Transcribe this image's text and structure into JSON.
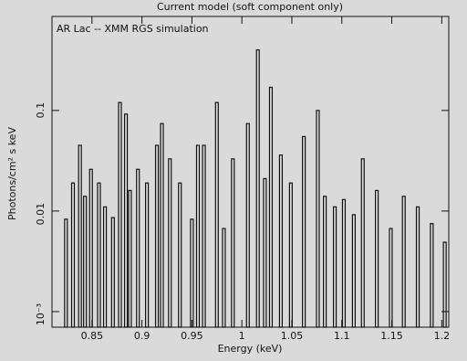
{
  "chart_data": {
    "type": "spectrum",
    "title": "Current model (soft component only)",
    "subtitle": "AR Lac -- XMM RGS simulation",
    "x_label": "Energy (keV)",
    "y_label": "Photons/cm² s keV",
    "x": [
      0.824,
      0.831,
      0.838,
      0.843,
      0.849,
      0.857,
      0.863,
      0.871,
      0.878,
      0.884,
      0.888,
      0.896,
      0.905,
      0.915,
      0.92,
      0.928,
      0.938,
      0.95,
      0.956,
      0.962,
      0.975,
      0.982,
      0.991,
      1.006,
      1.016,
      1.023,
      1.029,
      1.039,
      1.049,
      1.062,
      1.076,
      1.083,
      1.093,
      1.102,
      1.112,
      1.121,
      1.135,
      1.149,
      1.162,
      1.176,
      1.19,
      1.203
    ],
    "values": [
      0.0083,
      0.019,
      0.045,
      0.014,
      0.026,
      0.019,
      0.011,
      0.0086,
      0.12,
      0.092,
      0.016,
      0.026,
      0.019,
      0.045,
      0.074,
      0.033,
      0.019,
      0.0083,
      0.045,
      0.045,
      0.12,
      0.0067,
      0.033,
      0.074,
      0.4,
      0.021,
      0.17,
      0.036,
      0.019,
      0.055,
      0.1,
      0.014,
      0.011,
      0.013,
      0.0092,
      0.033,
      0.016,
      0.0067,
      0.014,
      0.011,
      0.0075,
      0.0049
    ],
    "color": "#111111",
    "log_y": true,
    "xlim": [
      0.81,
      1.207
    ],
    "ylim": [
      0.0007,
      0.86
    ],
    "xticks": [
      0.85,
      0.9,
      0.95,
      1,
      1.05,
      1.1,
      1.15,
      1.2
    ],
    "yticks": [
      {
        "value": 0.001,
        "label": "10⁻³"
      },
      0.01,
      0.1
    ]
  }
}
